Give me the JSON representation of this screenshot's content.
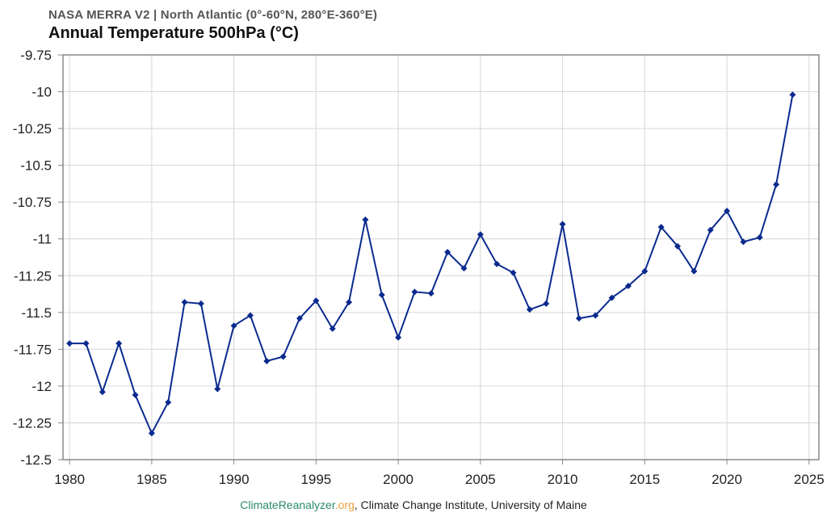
{
  "header": {
    "subtitle": "NASA MERRA V2 | North Atlantic (0°-60°N, 280°E-360°E)",
    "title": "Annual Temperature 500hPa (°C)"
  },
  "footer": {
    "site_main": "ClimateReanalyzer",
    "site_tld": ".org",
    "rest": ", Climate Change Institute, University of Maine"
  },
  "colors": {
    "line": "#0a2a8f",
    "grid": "#d6d6d6",
    "axis": "#888888",
    "site_main": "#2a8a6a",
    "site_tld": "#e9a13b"
  },
  "chart_data": {
    "type": "line",
    "title": "Annual Temperature 500hPa (°C)",
    "subtitle": "NASA MERRA V2 | North Atlantic (0°-60°N, 280°E-360°E)",
    "xlabel": "",
    "ylabel": "",
    "xlim": [
      1979.6,
      2025.6
    ],
    "ylim": [
      -12.5,
      -9.75
    ],
    "xticks": [
      1980,
      1985,
      1990,
      1995,
      2000,
      2005,
      2010,
      2015,
      2020,
      2025
    ],
    "xtick_labels": [
      "1980",
      "1985",
      "1990",
      "1995",
      "2000",
      "2005",
      "2010",
      "2015",
      "2020",
      "2025"
    ],
    "yticks": [
      -9.75,
      -10,
      -10.25,
      -10.5,
      -10.75,
      -11,
      -11.25,
      -11.5,
      -11.75,
      -12,
      -12.25,
      -12.5
    ],
    "ytick_labels": [
      "-9.75",
      "-10",
      "-10.25",
      "-10.5",
      "-10.75",
      "-11",
      "-11.25",
      "-11.5",
      "-11.75",
      "-12",
      "-12.25",
      "-12.5"
    ],
    "grid": true,
    "marker": "diamond",
    "series": [
      {
        "x": [
          1980,
          1981,
          1982,
          1983,
          1984,
          1985,
          1986,
          1987,
          1988,
          1989,
          1990,
          1991,
          1992,
          1993,
          1994,
          1995,
          1996,
          1997,
          1998,
          1999,
          2000,
          2001,
          2002,
          2003,
          2004,
          2005,
          2006,
          2007,
          2008,
          2009,
          2010,
          2011,
          2012,
          2013,
          2014,
          2015,
          2016,
          2017,
          2018,
          2019,
          2020,
          2021,
          2022,
          2023,
          2024
        ],
        "values": [
          -11.71,
          -11.71,
          -12.04,
          -11.71,
          -12.06,
          -12.32,
          -12.11,
          -11.43,
          -11.44,
          -12.02,
          -11.59,
          -11.52,
          -11.83,
          -11.8,
          -11.54,
          -11.42,
          -11.61,
          -11.43,
          -10.87,
          -11.38,
          -11.67,
          -11.36,
          -11.37,
          -11.09,
          -11.2,
          -10.97,
          -11.17,
          -11.23,
          -11.48,
          -11.44,
          -10.9,
          -11.54,
          -11.52,
          -11.4,
          -11.32,
          -11.22,
          -10.92,
          -11.05,
          -11.22,
          -10.94,
          -10.81,
          -11.02,
          -10.99,
          -10.63,
          -10.02
        ]
      }
    ]
  }
}
